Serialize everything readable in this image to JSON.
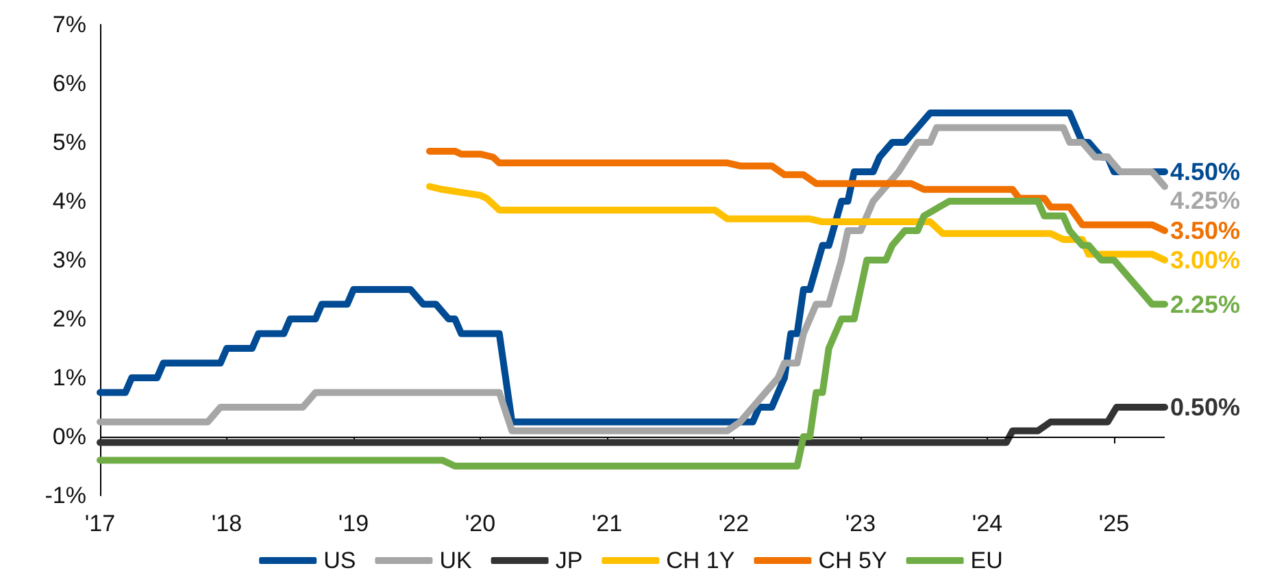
{
  "chart_data": {
    "type": "line",
    "ylim": [
      -1,
      7
    ],
    "yticks": [
      {
        "value": -1,
        "label": "-1%"
      },
      {
        "value": 0,
        "label": "0%"
      },
      {
        "value": 1,
        "label": "1%"
      },
      {
        "value": 2,
        "label": "2%"
      },
      {
        "value": 3,
        "label": "3%"
      },
      {
        "value": 4,
        "label": "4%"
      },
      {
        "value": 5,
        "label": "5%"
      },
      {
        "value": 6,
        "label": "6%"
      },
      {
        "value": 7,
        "label": "7%"
      }
    ],
    "xlim": [
      2017,
      2025.4
    ],
    "xticks": [
      {
        "value": 2017,
        "label": "'17"
      },
      {
        "value": 2018,
        "label": "'18"
      },
      {
        "value": 2019,
        "label": "'19"
      },
      {
        "value": 2020,
        "label": "'20"
      },
      {
        "value": 2021,
        "label": "'21"
      },
      {
        "value": 2022,
        "label": "'22"
      },
      {
        "value": 2023,
        "label": "'23"
      },
      {
        "value": 2024,
        "label": "'24"
      },
      {
        "value": 2025,
        "label": "'25"
      }
    ],
    "grid": false,
    "legend": "bottom",
    "ref_lines": [
      {
        "axis": "y",
        "value": 0,
        "color": "#000000"
      }
    ],
    "line_style": "solid",
    "series": [
      {
        "name": "US",
        "color": "#004b93",
        "x": [
          2017,
          2017.2,
          2017.25,
          2017.45,
          2017.5,
          2017.95,
          2018,
          2018.2,
          2018.25,
          2018.45,
          2018.5,
          2018.7,
          2018.75,
          2018.95,
          2019,
          2019.45,
          2019.55,
          2019.65,
          2019.75,
          2019.8,
          2019.85,
          2020.15,
          2020.25,
          2022.15,
          2022.2,
          2022.3,
          2022.4,
          2022.45,
          2022.5,
          2022.55,
          2022.6,
          2022.7,
          2022.75,
          2022.85,
          2022.9,
          2022.95,
          2023.1,
          2023.15,
          2023.25,
          2023.35,
          2023.45,
          2023.55,
          2024.65,
          2024.75,
          2024.8,
          2024.9,
          2024.95,
          2025,
          2025.4
        ],
        "values": [
          0.75,
          0.75,
          1.0,
          1.0,
          1.25,
          1.25,
          1.5,
          1.5,
          1.75,
          1.75,
          2.0,
          2.0,
          2.25,
          2.25,
          2.5,
          2.5,
          2.25,
          2.25,
          2.0,
          2.0,
          1.75,
          1.75,
          0.25,
          0.25,
          0.5,
          0.5,
          1.0,
          1.75,
          1.75,
          2.5,
          2.5,
          3.25,
          3.25,
          4.0,
          4.0,
          4.5,
          4.5,
          4.75,
          5.0,
          5.0,
          5.25,
          5.5,
          5.5,
          5.0,
          5.0,
          4.75,
          4.75,
          4.5,
          4.5
        ],
        "value_labels": [
          null,
          null,
          null,
          null,
          null,
          null,
          null,
          null,
          null,
          null,
          null,
          null,
          null,
          null,
          null,
          null,
          null,
          null,
          null,
          null,
          null,
          null,
          null,
          null,
          null,
          null,
          null,
          null,
          null,
          null,
          null,
          null,
          null,
          null,
          null,
          null,
          null,
          null,
          null,
          null,
          null,
          null,
          null,
          null,
          null,
          null,
          null,
          null,
          "4.50%"
        ]
      },
      {
        "name": "UK",
        "color": "#a6a6a6",
        "x": [
          2017,
          2017.85,
          2017.95,
          2018.6,
          2018.7,
          2020.15,
          2020.25,
          2021.95,
          2022.05,
          2022.15,
          2022.25,
          2022.35,
          2022.4,
          2022.5,
          2022.55,
          2022.65,
          2022.75,
          2022.85,
          2022.9,
          2023,
          2023.1,
          2023.2,
          2023.3,
          2023.45,
          2023.55,
          2023.6,
          2024.6,
          2024.65,
          2024.75,
          2024.85,
          2024.95,
          2025.05,
          2025.3,
          2025.4
        ],
        "values": [
          0.25,
          0.25,
          0.5,
          0.5,
          0.75,
          0.75,
          0.1,
          0.1,
          0.25,
          0.5,
          0.75,
          1.0,
          1.25,
          1.25,
          1.75,
          2.25,
          2.25,
          3.0,
          3.5,
          3.5,
          4.0,
          4.25,
          4.5,
          5.0,
          5.0,
          5.25,
          5.25,
          5.0,
          5.0,
          4.75,
          4.75,
          4.5,
          4.5,
          4.25
        ],
        "value_labels": [
          null,
          null,
          null,
          null,
          null,
          null,
          null,
          null,
          null,
          null,
          null,
          null,
          null,
          null,
          null,
          null,
          null,
          null,
          null,
          null,
          null,
          null,
          null,
          null,
          null,
          null,
          null,
          null,
          null,
          null,
          null,
          null,
          null,
          "4.25%"
        ]
      },
      {
        "name": "JP",
        "color": "#333333",
        "x": [
          2017,
          2024.15,
          2024.2,
          2024.4,
          2024.5,
          2024.55,
          2024.95,
          2025.02,
          2025.4
        ],
        "values": [
          -0.1,
          -0.1,
          0.1,
          0.1,
          0.25,
          0.25,
          0.25,
          0.5,
          0.5
        ],
        "value_labels": [
          null,
          null,
          null,
          null,
          null,
          null,
          null,
          null,
          "0.50%"
        ]
      },
      {
        "name": "CH 1Y",
        "color": "#ffc000",
        "x": [
          2019.6,
          2019.7,
          2019.85,
          2020,
          2020.05,
          2020.15,
          2021.85,
          2021.95,
          2022.6,
          2022.7,
          2023.55,
          2023.65,
          2024.5,
          2024.6,
          2024.75,
          2024.8,
          2025.3,
          2025.4
        ],
        "values": [
          4.25,
          4.2,
          4.15,
          4.1,
          4.05,
          3.85,
          3.85,
          3.7,
          3.7,
          3.65,
          3.65,
          3.45,
          3.45,
          3.35,
          3.35,
          3.1,
          3.1,
          3.0
        ],
        "value_labels": [
          null,
          null,
          null,
          null,
          null,
          null,
          null,
          null,
          null,
          null,
          null,
          null,
          null,
          null,
          null,
          null,
          null,
          "3.00%"
        ]
      },
      {
        "name": "CH 5Y",
        "color": "#f07000",
        "x": [
          2019.6,
          2019.8,
          2019.85,
          2020,
          2020.1,
          2020.15,
          2021.95,
          2022.05,
          2022.3,
          2022.4,
          2022.55,
          2022.65,
          2023.4,
          2023.5,
          2024.2,
          2024.25,
          2024.45,
          2024.5,
          2024.65,
          2024.75,
          2025.3,
          2025.4
        ],
        "values": [
          4.85,
          4.85,
          4.8,
          4.8,
          4.75,
          4.65,
          4.65,
          4.6,
          4.6,
          4.45,
          4.45,
          4.3,
          4.3,
          4.2,
          4.2,
          4.05,
          4.05,
          3.9,
          3.9,
          3.6,
          3.6,
          3.5
        ],
        "value_labels": [
          null,
          null,
          null,
          null,
          null,
          null,
          null,
          null,
          null,
          null,
          null,
          null,
          null,
          null,
          null,
          null,
          null,
          null,
          null,
          null,
          null,
          "3.50%"
        ]
      },
      {
        "name": "EU",
        "color": "#70ad47",
        "x": [
          2017,
          2019.7,
          2019.8,
          2022.5,
          2022.55,
          2022.6,
          2022.65,
          2022.7,
          2022.75,
          2022.85,
          2022.95,
          2023,
          2023.05,
          2023.2,
          2023.25,
          2023.35,
          2023.45,
          2023.5,
          2023.7,
          2024.4,
          2024.45,
          2024.6,
          2024.65,
          2024.75,
          2024.8,
          2024.9,
          2025,
          2025.1,
          2025.3,
          2025.4
        ],
        "values": [
          -0.4,
          -0.4,
          -0.5,
          -0.5,
          0,
          0,
          0.75,
          0.75,
          1.5,
          2.0,
          2.0,
          2.5,
          3.0,
          3.0,
          3.25,
          3.5,
          3.5,
          3.75,
          4.0,
          4.0,
          3.75,
          3.75,
          3.5,
          3.25,
          3.25,
          3.0,
          3.0,
          2.75,
          2.25,
          2.25
        ],
        "value_labels": [
          null,
          null,
          null,
          null,
          null,
          null,
          null,
          null,
          null,
          null,
          null,
          null,
          null,
          null,
          null,
          null,
          null,
          null,
          null,
          null,
          null,
          null,
          null,
          null,
          null,
          null,
          null,
          null,
          null,
          "2.25%"
        ]
      }
    ]
  }
}
